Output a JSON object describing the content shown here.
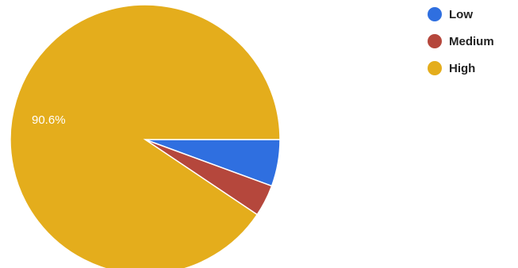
{
  "chart_data": {
    "type": "pie",
    "legend_position": "top-right",
    "start": "3-o'clock, clockwise",
    "slices": [
      {
        "name": "Low",
        "value": 5.6,
        "color": "#2f6fe0"
      },
      {
        "name": "Medium",
        "value": 3.8,
        "color": "#b5473c"
      },
      {
        "name": "High",
        "value": 90.6,
        "color": "#e4ad1c",
        "label": "90.6%"
      }
    ]
  }
}
